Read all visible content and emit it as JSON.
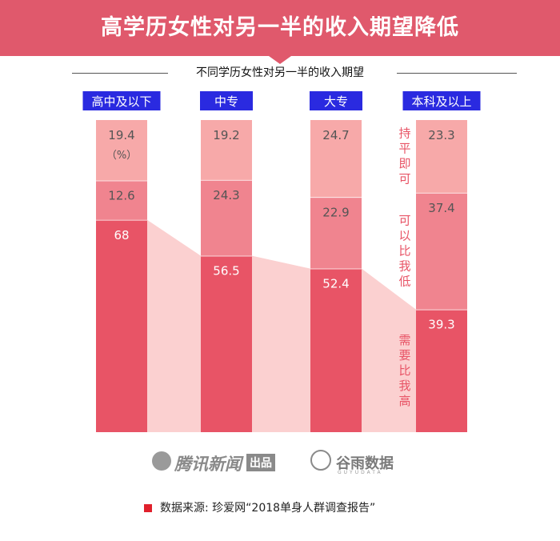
{
  "banner_title": "高学历女性对另一半的收入期望降低",
  "chart_data": {
    "type": "bar",
    "stacked": true,
    "title": "不同学历女性对另一半的收入期望",
    "unit": "（%）",
    "categories": [
      "高中及以下",
      "中专",
      "大专",
      "本科及以上"
    ],
    "series": [
      {
        "name": "需要比我高",
        "values": [
          68,
          56.5,
          52.4,
          39.3
        ],
        "color": "#e85466"
      },
      {
        "name": "可以比我低",
        "values": [
          12.6,
          24.3,
          22.9,
          37.4
        ],
        "color": "#f0848f"
      },
      {
        "name": "持平即可",
        "values": [
          19.4,
          19.2,
          24.7,
          23.3
        ],
        "color": "#f7a9a9"
      }
    ],
    "ylim": [
      0,
      100
    ],
    "category_label_bg": "#2a2ae0",
    "connector_color": "#fbd0d0"
  },
  "watermark": {
    "brand": "腾讯新闻",
    "badge": "出品",
    "partner": "谷雨数据",
    "partner_latin": "GUYUDATA"
  },
  "source": "数据来源: 珍爱网“2018单身人群调查报告”"
}
